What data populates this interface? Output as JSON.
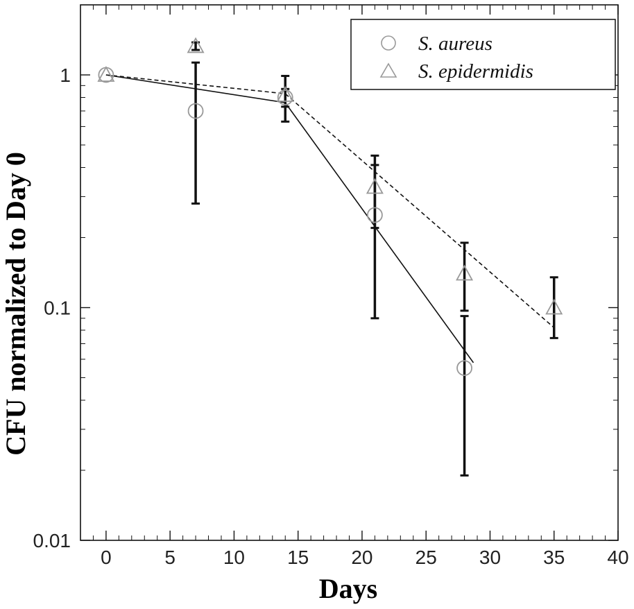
{
  "chart_data": {
    "type": "scatter",
    "title": "",
    "xlabel": "Days",
    "ylabel": "CFU normalized to Day 0",
    "xlim": [
      -2,
      40
    ],
    "ylim": [
      0.01,
      2
    ],
    "yscale": "log",
    "x_ticks": [
      0,
      5,
      10,
      15,
      20,
      25,
      30,
      35,
      40
    ],
    "y_ticks": [
      0.01,
      0.1,
      1
    ],
    "y_tick_labels": [
      "0.01",
      "0.1",
      "1"
    ],
    "legend_position": "top-right",
    "series": [
      {
        "name": "S. aureus",
        "marker": "circle",
        "marker_color": "#999999",
        "points": [
          {
            "x": 0,
            "y": 1.0,
            "err_low": null,
            "err_high": null
          },
          {
            "x": 7,
            "y": 0.7,
            "err_low": 0.28,
            "err_high": 1.13
          },
          {
            "x": 14,
            "y": 0.8,
            "err_low": 0.63,
            "err_high": 0.87
          },
          {
            "x": 21,
            "y": 0.25,
            "err_low": 0.09,
            "err_high": 0.41
          },
          {
            "x": 28,
            "y": 0.055,
            "err_low": 0.019,
            "err_high": 0.092
          }
        ],
        "fit": {
          "style": "solid",
          "color": "#111111",
          "from": [
            0,
            1.0
          ],
          "to": [
            28.7,
            0.058
          ],
          "knot": [
            14,
            0.76
          ]
        }
      },
      {
        "name": "S. epidermidis",
        "marker": "triangle",
        "marker_color": "#999999",
        "points": [
          {
            "x": 0,
            "y": 1.0,
            "err_low": null,
            "err_high": null
          },
          {
            "x": 7,
            "y": 1.33,
            "err_low": 1.28,
            "err_high": 1.38
          },
          {
            "x": 14,
            "y": 0.82,
            "err_low": 0.73,
            "err_high": 0.99
          },
          {
            "x": 21,
            "y": 0.33,
            "err_low": 0.22,
            "err_high": 0.45
          },
          {
            "x": 28,
            "y": 0.14,
            "err_low": 0.097,
            "err_high": 0.19
          },
          {
            "x": 35,
            "y": 0.1,
            "err_low": 0.074,
            "err_high": 0.135
          }
        ],
        "fit": {
          "style": "dashed",
          "color": "#111111",
          "from": [
            0,
            1.0
          ],
          "to": [
            35,
            0.082
          ],
          "knot": [
            14,
            0.83
          ]
        }
      }
    ]
  }
}
